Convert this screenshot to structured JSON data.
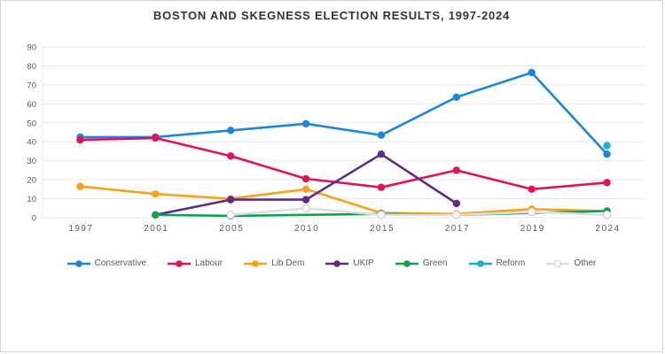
{
  "chart_data": {
    "type": "line",
    "title": "BOSTON AND SKEGNESS ELECTION RESULTS, 1997-2024",
    "categories": [
      "1997",
      "2001",
      "2005",
      "2010",
      "2015",
      "2017",
      "2019",
      "2024"
    ],
    "series": [
      {
        "name": "Conservative",
        "color": "#1a88d9",
        "values": [
          42.5,
          42.5,
          46,
          49.5,
          43.5,
          63.5,
          76.5,
          33.5
        ]
      },
      {
        "name": "Labour",
        "color": "#e31159",
        "values": [
          41,
          42,
          32.5,
          20.5,
          16,
          25,
          15,
          18.5
        ]
      },
      {
        "name": "Lib Dem",
        "color": "#f7a21a",
        "values": [
          16.5,
          12.5,
          10,
          15,
          2.5,
          2,
          4.5,
          3.5
        ]
      },
      {
        "name": "UKIP",
        "color": "#5c2e80",
        "values": [
          null,
          1.5,
          9.5,
          9.5,
          33.5,
          7.5,
          null,
          null
        ]
      },
      {
        "name": "Green",
        "color": "#10a150",
        "values": [
          null,
          1.5,
          1,
          null,
          2,
          1.5,
          null,
          3.5
        ]
      },
      {
        "name": "Reform",
        "color": "#17b0ce",
        "values": [
          null,
          null,
          null,
          null,
          null,
          null,
          null,
          38
        ]
      },
      {
        "name": "Other",
        "color": "#dedede",
        "values": [
          null,
          null,
          1.5,
          5,
          1.5,
          1.5,
          3,
          1.5
        ]
      }
    ],
    "ylim": [
      0,
      90
    ],
    "ytick_step": 10,
    "yticks": [
      "0",
      "10",
      "20",
      "30",
      "40",
      "50",
      "60",
      "70",
      "80",
      "90"
    ],
    "grid": true,
    "legend_position": "bottom",
    "axis_text_color": "#595959",
    "gridline_color": "#e8e8e8"
  }
}
